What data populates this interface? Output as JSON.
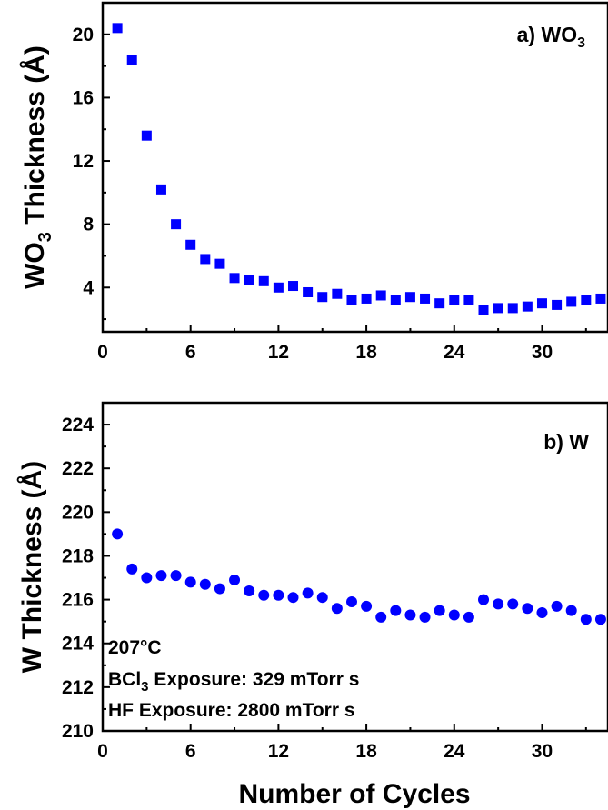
{
  "chart_data": [
    {
      "type": "scatter",
      "panel_label": "a) WO",
      "panel_label_sub": "3",
      "ylabel": "WO",
      "ylabel_sub": "3",
      "ylabel_rest": " Thickness (Å)",
      "xlim": [
        0,
        34.5
      ],
      "ylim": [
        1.2,
        22
      ],
      "xticks": [
        0,
        6,
        12,
        18,
        24,
        30
      ],
      "yticks": [
        4,
        8,
        12,
        16,
        20
      ],
      "marker": "square",
      "color": "#0000ff",
      "series": [
        {
          "x": [
            1,
            2,
            3,
            4,
            5,
            6,
            7,
            8,
            9,
            10,
            11,
            12,
            13,
            14,
            15,
            16,
            17,
            18,
            19,
            20,
            21,
            22,
            23,
            24,
            25,
            26,
            27,
            28,
            29,
            30,
            31,
            32,
            33,
            34
          ],
          "y": [
            20.4,
            18.4,
            13.6,
            10.2,
            8.0,
            6.7,
            5.8,
            5.5,
            4.6,
            4.5,
            4.4,
            4.0,
            4.1,
            3.7,
            3.4,
            3.6,
            3.2,
            3.3,
            3.5,
            3.2,
            3.4,
            3.3,
            3.0,
            3.2,
            3.2,
            2.6,
            2.7,
            2.7,
            2.8,
            3.0,
            2.9,
            3.1,
            3.2,
            3.3
          ]
        }
      ]
    },
    {
      "type": "scatter",
      "panel_label": "b) W",
      "ylabel": "W Thickness (Å)",
      "xlabel": "Number of Cycles",
      "xlim": [
        0,
        34.5
      ],
      "ylim": [
        210,
        225
      ],
      "xticks": [
        0,
        6,
        12,
        18,
        24,
        30
      ],
      "yticks": [
        210,
        212,
        214,
        216,
        218,
        220,
        222,
        224
      ],
      "marker": "circle",
      "color": "#0000ff",
      "annotations": {
        "temperature": "207°C",
        "bcl3_pre": "BCl",
        "bcl3_sub": "3",
        "bcl3_post": " Exposure: 329 mTorr s",
        "hf": "HF Exposure: 2800 mTorr s"
      },
      "series": [
        {
          "x": [
            1,
            2,
            3,
            4,
            5,
            6,
            7,
            8,
            9,
            10,
            11,
            12,
            13,
            14,
            15,
            16,
            17,
            18,
            19,
            20,
            21,
            22,
            23,
            24,
            25,
            26,
            27,
            28,
            29,
            30,
            31,
            32,
            33,
            34
          ],
          "y": [
            219.0,
            217.4,
            217.0,
            217.1,
            217.1,
            216.8,
            216.7,
            216.5,
            216.9,
            216.4,
            216.2,
            216.2,
            216.1,
            216.3,
            216.1,
            215.6,
            215.9,
            215.7,
            215.2,
            215.5,
            215.3,
            215.2,
            215.5,
            215.3,
            215.2,
            216.0,
            215.8,
            215.8,
            215.6,
            215.4,
            215.7,
            215.5,
            215.1,
            215.1
          ]
        }
      ]
    }
  ]
}
